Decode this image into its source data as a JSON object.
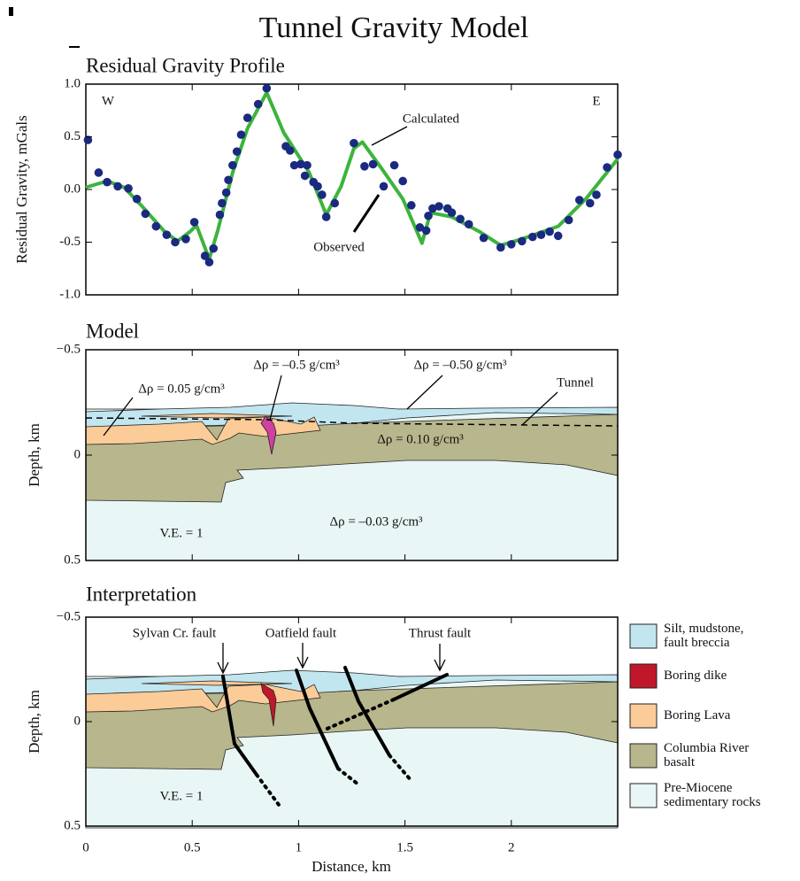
{
  "title": "Tunnel Gravity Model",
  "chart_data": [
    {
      "type": "profile",
      "title": "Residual Gravity Profile",
      "y_label": "Residual Gravity, mGals",
      "xlim": [
        0,
        2.5
      ],
      "xticks": [
        0,
        0.5,
        1,
        1.5,
        2
      ],
      "ylim": [
        -1,
        1
      ],
      "yticks": [
        {
          "value": -1,
          "label": "-1.0"
        },
        -0.5,
        {
          "value": 0,
          "label": "0.0"
        },
        0.5,
        {
          "value": 1,
          "label": "1.0"
        }
      ],
      "annotations": [
        "W",
        "E"
      ],
      "series": [
        {
          "name": "Calculated",
          "type": "line",
          "color": "#3cb43c",
          "x": [
            0,
            0.1,
            0.18,
            0.26,
            0.37,
            0.43,
            0.49,
            0.52,
            0.58,
            0.62,
            0.69,
            0.76,
            0.85,
            0.93,
            1.05,
            1.13,
            1.2,
            1.26,
            1.3,
            1.39,
            1.49,
            1.58,
            1.62,
            1.72,
            1.85,
            1.95,
            2.05,
            2.22,
            2.35,
            2.5
          ],
          "values": [
            0.02,
            0.08,
            0.02,
            -0.15,
            -0.4,
            -0.49,
            -0.4,
            -0.34,
            -0.66,
            -0.39,
            0.16,
            0.58,
            0.92,
            0.54,
            0.16,
            -0.24,
            0.03,
            0.39,
            0.45,
            0.2,
            -0.09,
            -0.51,
            -0.22,
            -0.26,
            -0.4,
            -0.53,
            -0.47,
            -0.35,
            -0.09,
            0.29
          ]
        },
        {
          "name": "Observed",
          "type": "scatter",
          "color": "#1a2a80",
          "x": [
            0.01,
            0.06,
            0.1,
            0.15,
            0.2,
            0.24,
            0.28,
            0.33,
            0.38,
            0.42,
            0.47,
            0.51,
            0.56,
            0.58,
            0.6,
            0.63,
            0.64,
            0.66,
            0.67,
            0.69,
            0.71,
            0.73,
            0.76,
            0.81,
            0.85,
            0.94,
            0.96,
            0.98,
            1.01,
            1.03,
            1.04,
            1.07,
            1.09,
            1.11,
            1.13,
            1.17,
            1.26,
            1.31,
            1.35,
            1.4,
            1.45,
            1.49,
            1.53,
            1.57,
            1.6,
            1.61,
            1.63,
            1.66,
            1.7,
            1.72,
            1.76,
            1.8,
            1.87,
            1.95,
            2.0,
            2.05,
            2.1,
            2.14,
            2.18,
            2.22,
            2.27,
            2.32,
            2.37,
            2.4,
            2.45,
            2.5
          ],
          "values": [
            0.47,
            0.16,
            0.07,
            0.03,
            0.01,
            -0.09,
            -0.23,
            -0.35,
            -0.43,
            -0.5,
            -0.47,
            -0.31,
            -0.63,
            -0.69,
            -0.56,
            -0.24,
            -0.13,
            -0.03,
            0.09,
            0.23,
            0.36,
            0.52,
            0.68,
            0.81,
            0.96,
            0.41,
            0.37,
            0.23,
            0.24,
            0.13,
            0.23,
            0.07,
            0.03,
            -0.05,
            -0.26,
            -0.13,
            0.44,
            0.22,
            0.24,
            0.03,
            0.23,
            0.08,
            -0.15,
            -0.36,
            -0.39,
            -0.25,
            -0.18,
            -0.16,
            -0.18,
            -0.22,
            -0.28,
            -0.33,
            -0.46,
            -0.55,
            -0.52,
            -0.49,
            -0.45,
            -0.43,
            -0.4,
            -0.44,
            -0.29,
            -0.1,
            -0.13,
            -0.05,
            0.21,
            0.33
          ]
        }
      ]
    },
    {
      "type": "section",
      "title": "Model",
      "y_label": "Depth, km",
      "xlim": [
        0,
        2.5
      ],
      "xticks": [
        0,
        0.5,
        1,
        1.5,
        2
      ],
      "ylim": [
        -0.5,
        0.5
      ],
      "yticks": [
        {
          "value": -0.5,
          "label": "−0.5"
        },
        0,
        0.5
      ],
      "annotations": [
        "Δρ = 0.05 g/cm³",
        "Δρ = –0.5 g/cm³",
        "Δρ = –0.50 g/cm³",
        "Tunnel",
        "Δρ = 0.10 g/cm³",
        "Δρ = –0.03 g/cm³",
        "V.E. = 1"
      ]
    },
    {
      "type": "section",
      "title": "Interpretation",
      "y_label": "Depth, km",
      "x_label": "Distance, km",
      "xlim": [
        0,
        2.5
      ],
      "xticks": [
        0,
        0.5,
        1,
        1.5,
        2
      ],
      "ylim": [
        -0.5,
        0.5
      ],
      "yticks": [
        {
          "value": -0.5,
          "label": "−0.5"
        },
        0,
        0.5
      ],
      "annotations": [
        "Sylvan Cr. fault",
        "Oatfield fault",
        "Thrust fault",
        "V.E. = 1"
      ],
      "legend": [
        {
          "label": [
            "Silt, mudstone,",
            "fault breccia"
          ],
          "color": "#c2e6f0"
        },
        {
          "label": [
            "Boring dike"
          ],
          "color": "#c0182a"
        },
        {
          "label": [
            "Boring Lava"
          ],
          "color": "#fbcb98"
        },
        {
          "label": [
            "Columbia River",
            "basalt"
          ],
          "color": "#b7b68c"
        },
        {
          "label": [
            "Pre-Miocene",
            "sedimentary rocks"
          ],
          "color": "#e8f6f6"
        }
      ]
    }
  ]
}
